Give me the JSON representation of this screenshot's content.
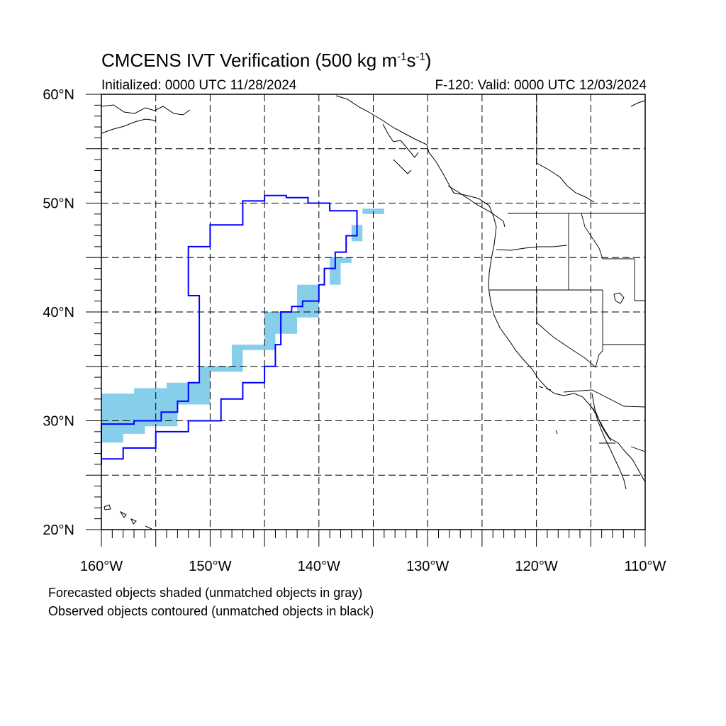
{
  "title": {
    "main": "CMCENS IVT Verification (500 kg m",
    "sup1": "-1",
    "mid": "s",
    "sup2": "-1",
    "end": ")"
  },
  "initialized": "Initialized: 0000 UTC 11/28/2024",
  "valid": "F-120: Valid: 0000 UTC 12/03/2024",
  "lat_labels": [
    "60°N",
    "50°N",
    "40°N",
    "30°N",
    "20°N"
  ],
  "lon_labels": [
    "160°W",
    "150°W",
    "140°W",
    "130°W",
    "120°W",
    "110°W"
  ],
  "captions": [
    "Forecasted objects shaded (unmatched objects in gray)",
    "Observed objects contoured (unmatched objects in black)"
  ],
  "map": {
    "lon_range": [
      -160,
      -110
    ],
    "lat_range": [
      20,
      60
    ],
    "grid_step_deg": 5,
    "colors": {
      "forecast_fill": "#87ceeb",
      "observed_contour": "#0000ff",
      "coast": "#000000",
      "grid": "#000000"
    },
    "forecast_object": [
      [
        -160,
        32.5
      ],
      [
        -157,
        33
      ],
      [
        -154,
        33.5
      ],
      [
        -151,
        35
      ],
      [
        -148,
        37
      ],
      [
        -145,
        40
      ],
      [
        -142,
        42.5
      ],
      [
        -139,
        45
      ],
      [
        -137,
        48
      ],
      [
        -136,
        49.5
      ],
      [
        -134,
        50.3
      ],
      [
        -134,
        49
      ],
      [
        -136,
        46.5
      ],
      [
        -137,
        44.5
      ],
      [
        -138,
        42.5
      ],
      [
        -140,
        39.5
      ],
      [
        -142,
        38
      ],
      [
        -144,
        36.5
      ],
      [
        -147,
        34.5
      ],
      [
        -150,
        31.5
      ],
      [
        -153,
        29.5
      ],
      [
        -156,
        28.8
      ],
      [
        -158,
        28
      ],
      [
        -160,
        27.5
      ]
    ],
    "observed_object": [
      [
        -160,
        29.7
      ],
      [
        -157,
        30
      ],
      [
        -154.5,
        30.8
      ],
      [
        -153,
        31.8
      ],
      [
        -152,
        33.5
      ],
      [
        -151,
        35.5
      ],
      [
        -151,
        41.5
      ],
      [
        -152,
        43
      ],
      [
        -152,
        46
      ],
      [
        -150,
        48
      ],
      [
        -147,
        50.2
      ],
      [
        -145,
        50.7
      ],
      [
        -143,
        50.5
      ],
      [
        -141,
        50
      ],
      [
        -139,
        49.3
      ],
      [
        -136.5,
        49.2
      ],
      [
        -136.5,
        47
      ],
      [
        -137.5,
        45.5
      ],
      [
        -138.5,
        44
      ],
      [
        -139.5,
        42.5
      ],
      [
        -140,
        41
      ],
      [
        -141.5,
        40.5
      ],
      [
        -142.5,
        40
      ],
      [
        -143.5,
        37
      ],
      [
        -144,
        35
      ],
      [
        -145,
        33.5
      ],
      [
        -147,
        32
      ],
      [
        -149,
        30
      ],
      [
        -152,
        29
      ],
      [
        -155,
        27.5
      ],
      [
        -158,
        26.5
      ],
      [
        -160,
        26
      ]
    ]
  }
}
